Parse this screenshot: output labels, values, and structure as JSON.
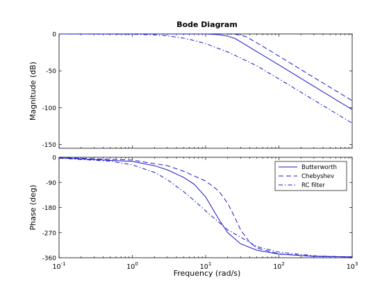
{
  "chart_data": {
    "type": "line",
    "title": "Bode Diagram",
    "xlabel": "Frequency  (rad/s)",
    "xscale": "log",
    "xlim": [
      0.1,
      1000
    ],
    "x_ticks": [
      0.1,
      1,
      10,
      100,
      1000
    ],
    "grid": false,
    "line_color": "#1515c8",
    "panels": [
      {
        "name": "magnitude",
        "ylabel": "Magnitude (dB)",
        "ylim": [
          -155,
          0
        ],
        "y_ticks": [
          0,
          -50,
          -100,
          -150
        ],
        "y_tick_labels": [
          "0",
          "-50",
          "-100",
          "-150"
        ],
        "series": [
          {
            "name": "Butterworth",
            "x": [
              0.1,
              1,
              3,
              10,
              15,
              20,
              25,
              30,
              50,
              100,
              300,
              1000
            ],
            "y": [
              0,
              0,
              0,
              0,
              -1,
              -3,
              -6,
              -10.6,
              -24,
              -42,
              -71,
              -102.6
            ]
          },
          {
            "name": "Chebyshev",
            "x": [
              0.1,
              1,
              10,
              20,
              25,
              30,
              35,
              40,
              50,
              100,
              300,
              1000
            ],
            "y": [
              0,
              0,
              0,
              0,
              -0.5,
              -1.5,
              -3.5,
              -6.5,
              -12,
              -30,
              -59,
              -90.5
            ]
          },
          {
            "name": "RC filter",
            "x": [
              0.1,
              1,
              2,
              3,
              5,
              7,
              10,
              20,
              50,
              100,
              300,
              1000
            ],
            "y": [
              0,
              -0.4,
              -1.2,
              -2.4,
              -5.7,
              -9,
              -13.2,
              -24.3,
              -43.2,
              -61,
              -89.6,
              -121
            ]
          }
        ]
      },
      {
        "name": "phase",
        "ylabel": "Phase (deg)",
        "ylim": [
          -360,
          0
        ],
        "y_ticks": [
          0,
          -90,
          -180,
          -270,
          -360
        ],
        "y_tick_labels": [
          "0",
          "-90",
          "-180",
          "-270",
          "-360"
        ],
        "series": [
          {
            "name": "Butterworth",
            "x": [
              0.1,
              1,
              2,
              3,
              5,
              7,
              10,
              15,
              20,
              30,
              50,
              100,
              300,
              1000
            ],
            "y": [
              -2,
              -15,
              -30,
              -45,
              -72,
              -97,
              -142,
              -220,
              -270,
              -310,
              -333,
              -347,
              -355,
              -357
            ]
          },
          {
            "name": "Chebyshev",
            "x": [
              0.1,
              1,
              3,
              5,
              10,
              15,
              20,
              25,
              30,
              40,
              50,
              100,
              300,
              1000
            ],
            "y": [
              -1,
              -10,
              -30,
              -50,
              -85,
              -120,
              -165,
              -215,
              -260,
              -305,
              -325,
              -346,
              -355,
              -357
            ]
          },
          {
            "name": "RC filter",
            "x": [
              0.1,
              0.5,
              1,
              2,
              3,
              5,
              7,
              10,
              20,
              50,
              100,
              300,
              1000
            ],
            "y": [
              -3,
              -14,
              -27,
              -54,
              -80,
              -123,
              -155,
              -192,
              -260,
              -320,
              -340,
              -353,
              -358
            ]
          }
        ]
      }
    ],
    "legend": {
      "placement": "top-right of phase panel",
      "entries": [
        {
          "label": "Butterworth",
          "dash": "solid"
        },
        {
          "label": "Chebyshev",
          "dash": "dashed"
        },
        {
          "label": "RC filter",
          "dash": "dash-dot"
        }
      ]
    }
  }
}
